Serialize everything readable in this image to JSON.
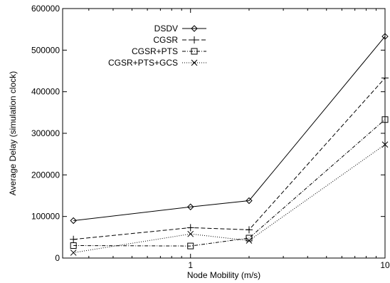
{
  "chart_data": {
    "type": "line",
    "xlabel": "Node Mobility (m/s)",
    "ylabel": "Average Delay (simulation clock)",
    "xscale": "log",
    "xlim": [
      0.22,
      10
    ],
    "ylim": [
      0,
      600000
    ],
    "x_ticks": [
      {
        "value": 1,
        "label": "1"
      },
      {
        "value": 10,
        "label": "10"
      }
    ],
    "y_ticks": [
      {
        "value": 0,
        "label": "0"
      },
      {
        "value": 100000,
        "label": "100000"
      },
      {
        "value": 200000,
        "label": "200000"
      },
      {
        "value": 300000,
        "label": "300000"
      },
      {
        "value": 400000,
        "label": "400000"
      },
      {
        "value": 500000,
        "label": "500000"
      },
      {
        "value": 600000,
        "label": "600000"
      }
    ],
    "grid": false,
    "legend_position": "top-left",
    "series": [
      {
        "name": "DSDV",
        "marker": "diamond",
        "dash": "solid",
        "x": [
          0.25,
          1,
          2,
          10
        ],
        "y": [
          90000,
          123000,
          138000,
          533000
        ]
      },
      {
        "name": "CGSR",
        "marker": "plus",
        "dash": "dashed",
        "x": [
          0.25,
          1,
          2,
          10
        ],
        "y": [
          45000,
          73000,
          68000,
          433000
        ]
      },
      {
        "name": "CGSR+PTS",
        "marker": "square",
        "dash": "dashdot",
        "x": [
          0.25,
          1,
          2,
          10
        ],
        "y": [
          30000,
          29000,
          48000,
          333000
        ]
      },
      {
        "name": "CGSR+PTS+GCS",
        "marker": "cross",
        "dash": "dotted",
        "x": [
          0.25,
          1,
          2,
          10
        ],
        "y": [
          13000,
          58000,
          42000,
          273000
        ]
      }
    ]
  }
}
